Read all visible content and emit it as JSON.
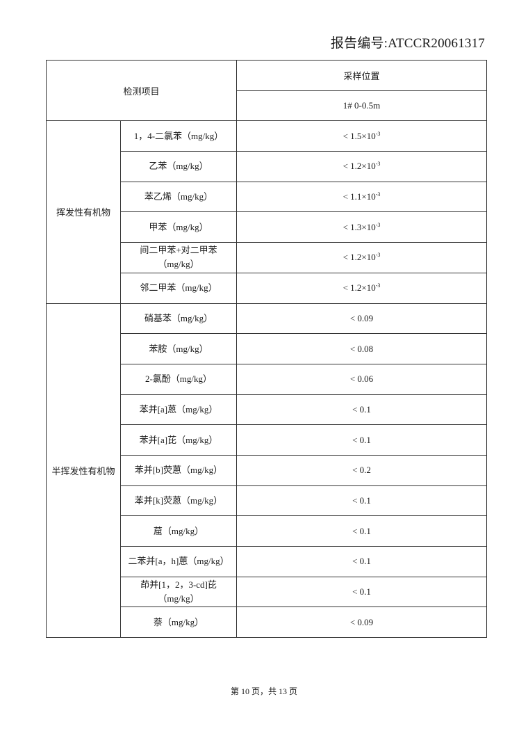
{
  "report_number": "报告编号:ATCCR20061317",
  "table": {
    "header_item": "检测项目",
    "header_location": "采样位置",
    "sample_id": "1# 0-0.5m",
    "groups": [
      {
        "name": "挥发性有机物",
        "rows": [
          {
            "item": "1，4-二氯苯（mg/kg）",
            "value": "< 1.5×10",
            "exp": "-3"
          },
          {
            "item": "乙苯（mg/kg）",
            "value": "< 1.2×10",
            "exp": "-3"
          },
          {
            "item": "苯乙烯（mg/kg）",
            "value": "< 1.1×10",
            "exp": "-3"
          },
          {
            "item": "甲苯（mg/kg）",
            "value": "< 1.3×10",
            "exp": "-3"
          },
          {
            "item": "间二甲苯+对二甲苯（mg/kg）",
            "value": "< 1.2×10",
            "exp": "-3"
          },
          {
            "item": "邻二甲苯（mg/kg）",
            "value": "< 1.2×10",
            "exp": "-3"
          }
        ]
      },
      {
        "name": "半挥发性有机物",
        "rows": [
          {
            "item": "硝基苯（mg/kg）",
            "value": "< 0.09"
          },
          {
            "item": "苯胺（mg/kg）",
            "value": "< 0.08"
          },
          {
            "item": "2-氯酚（mg/kg）",
            "value": "< 0.06"
          },
          {
            "item": "苯并[a]蒽（mg/kg）",
            "value": "< 0.1"
          },
          {
            "item": "苯并[a]芘（mg/kg）",
            "value": "< 0.1"
          },
          {
            "item": "苯并[b]荧蒽（mg/kg）",
            "value": "< 0.2"
          },
          {
            "item": "苯并[k]荧蒽（mg/kg）",
            "value": "< 0.1"
          },
          {
            "item": "䓛（mg/kg）",
            "value": "< 0.1"
          },
          {
            "item": "二苯并[a，h]蒽（mg/kg）",
            "value": "< 0.1"
          },
          {
            "item": "茚并[1，2，3-cd]芘（mg/kg）",
            "value": "< 0.1"
          },
          {
            "item": "萘（mg/kg）",
            "value": "< 0.09"
          }
        ]
      }
    ]
  },
  "footer": "第 10 页，共 13 页"
}
